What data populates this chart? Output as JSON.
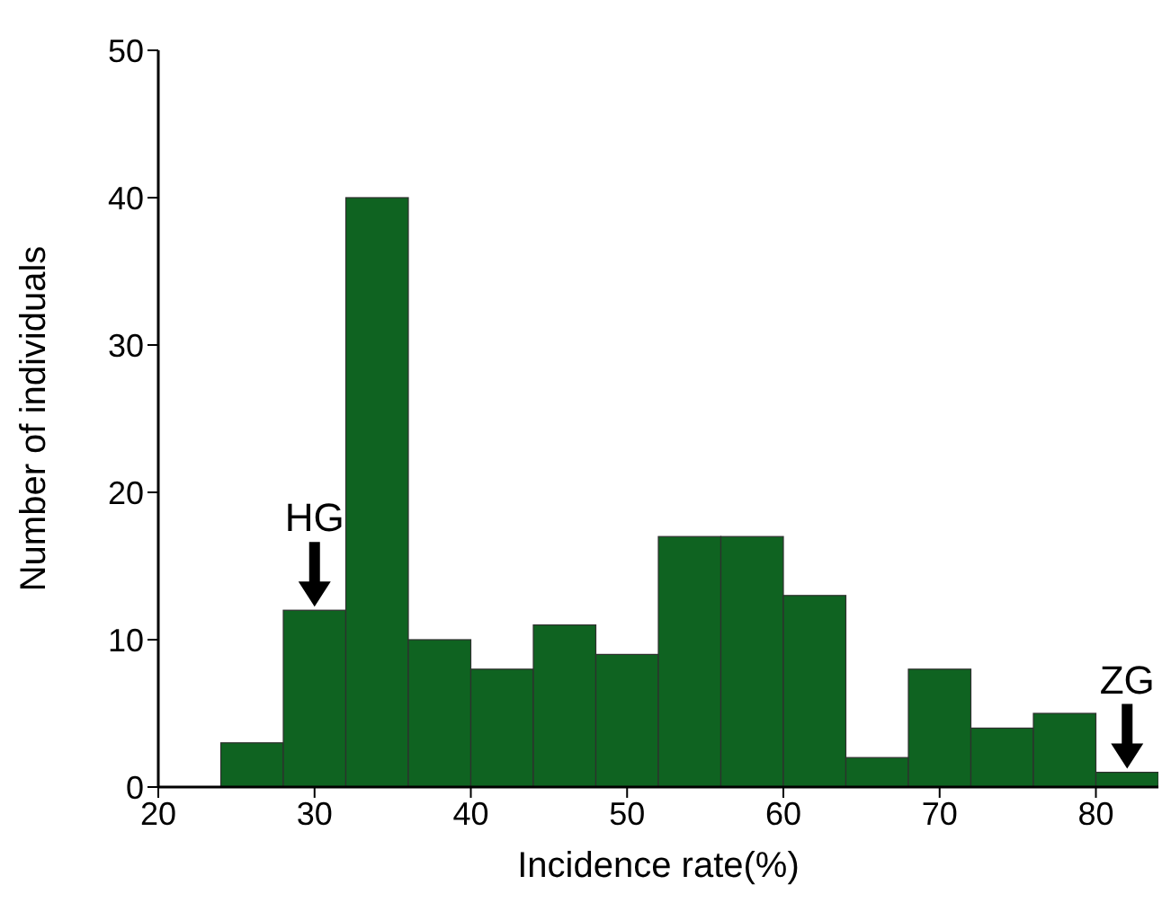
{
  "chart_data": {
    "type": "histogram",
    "xlabel": "Incidence rate(%)",
    "ylabel": "Number of individuals",
    "bins": [
      24,
      28,
      32,
      36,
      40,
      44,
      48,
      52,
      56,
      60,
      64,
      68,
      72,
      76,
      80,
      84
    ],
    "values": [
      3,
      12,
      40,
      10,
      8,
      11,
      9,
      17,
      17,
      13,
      2,
      8,
      4,
      5,
      1
    ],
    "color": "#0f6321",
    "xlim": [
      20,
      84
    ],
    "xticks": [
      20,
      30,
      40,
      50,
      60,
      70,
      80
    ],
    "ylim": [
      0,
      50
    ],
    "yticks": [
      0,
      10,
      20,
      30,
      40,
      50
    ],
    "grid": false,
    "legend": false,
    "annotations": [
      {
        "text": "HG",
        "x": 30,
        "y": 12
      },
      {
        "text": "ZG",
        "x": 82,
        "y": 1
      }
    ]
  }
}
